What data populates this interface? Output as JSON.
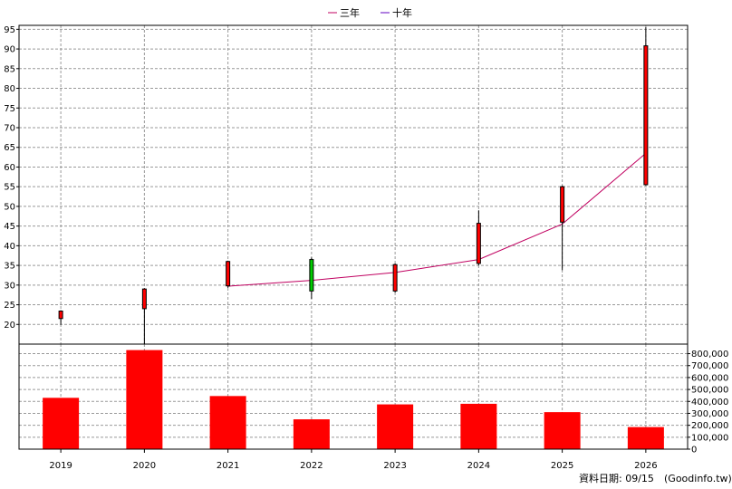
{
  "chart_data": {
    "type": "candlestick",
    "legend": [
      {
        "name": "三年",
        "color": "#c00060"
      },
      {
        "name": "十年",
        "color": "#6000c0"
      }
    ],
    "categories": [
      "2019",
      "2020",
      "2021",
      "2022",
      "2023",
      "2024",
      "2025",
      "2026"
    ],
    "price": {
      "ylim": [
        15,
        96
      ],
      "yticks": [
        20,
        25,
        30,
        35,
        40,
        45,
        50,
        55,
        60,
        65,
        70,
        75,
        80,
        85,
        90,
        95
      ],
      "candles": [
        {
          "year": "2019",
          "open": 21.5,
          "close": 23.4,
          "high": 23.6,
          "low": 19.9,
          "color": "#ff0000"
        },
        {
          "year": "2020",
          "open": 24.0,
          "close": 29.0,
          "high": 29.2,
          "low": 15.0,
          "color": "#ff0000"
        },
        {
          "year": "2021",
          "open": 29.8,
          "close": 36.0,
          "high": 36.2,
          "low": 29.3,
          "color": "#ff0000"
        },
        {
          "year": "2022",
          "open": 36.5,
          "close": 28.5,
          "high": 37.0,
          "low": 26.5,
          "color": "#00cc00"
        },
        {
          "year": "2023",
          "open": 28.5,
          "close": 35.2,
          "high": 35.5,
          "low": 28.1,
          "color": "#ff0000"
        },
        {
          "year": "2024",
          "open": 35.5,
          "close": 45.7,
          "high": 49.0,
          "low": 35.0,
          "color": "#ff0000"
        },
        {
          "year": "2025",
          "open": 46.0,
          "close": 55.0,
          "high": 55.3,
          "low": 33.8,
          "color": "#ff0000"
        },
        {
          "year": "2026",
          "open": 55.5,
          "close": 90.8,
          "high": 95.5,
          "low": 55.3,
          "color": "#ff0000"
        }
      ]
    },
    "series": [
      {
        "name": "三年",
        "color": "#c00060",
        "points": [
          {
            "x": "2021",
            "y": 29.7
          },
          {
            "x": "2022",
            "y": 31.2
          },
          {
            "x": "2023",
            "y": 33.2
          },
          {
            "x": "2024",
            "y": 36.5
          },
          {
            "x": "2025",
            "y": 45.5
          },
          {
            "x": "2026",
            "y": 63.5
          }
        ]
      }
    ],
    "volume": {
      "ylim": [
        0,
        880000
      ],
      "yticks": [
        0,
        100000,
        200000,
        300000,
        400000,
        500000,
        600000,
        700000,
        800000
      ],
      "ytick_labels": [
        "0",
        "100,000",
        "200,000",
        "300,000",
        "400,000",
        "500,000",
        "600,000",
        "700,000",
        "800,000"
      ],
      "values": [
        430000,
        830000,
        445000,
        250000,
        375000,
        380000,
        310000,
        185000
      ],
      "color": "#ff0000"
    },
    "grid": true
  },
  "footer": {
    "date_text": "資料日期: 09/15",
    "source_text": "(Goodinfo.tw)"
  }
}
